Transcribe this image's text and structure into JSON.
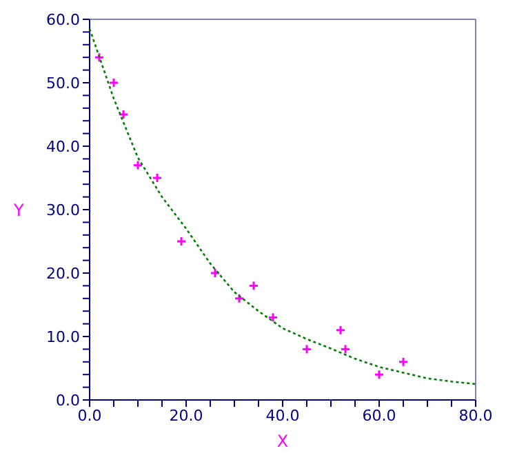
{
  "chart_data": {
    "type": "scatter",
    "xlabel": "X",
    "ylabel": "Y",
    "xlim": [
      0,
      80
    ],
    "ylim": [
      0,
      60
    ],
    "xticks": [
      {
        "value": 0,
        "label": "0.0"
      },
      {
        "value": 5,
        "label": null
      },
      {
        "value": 10,
        "label": null
      },
      {
        "value": 15,
        "label": null
      },
      {
        "value": 20,
        "label": "20.0"
      },
      {
        "value": 25,
        "label": null
      },
      {
        "value": 30,
        "label": null
      },
      {
        "value": 35,
        "label": null
      },
      {
        "value": 40,
        "label": "40.0"
      },
      {
        "value": 45,
        "label": null
      },
      {
        "value": 50,
        "label": null
      },
      {
        "value": 55,
        "label": null
      },
      {
        "value": 60,
        "label": "60.0"
      },
      {
        "value": 65,
        "label": null
      },
      {
        "value": 70,
        "label": null
      },
      {
        "value": 75,
        "label": null
      },
      {
        "value": 80,
        "label": "80.0"
      }
    ],
    "yticks": [
      {
        "value": 0,
        "label": "0.0"
      },
      {
        "value": 2,
        "label": null
      },
      {
        "value": 4,
        "label": null
      },
      {
        "value": 6,
        "label": null
      },
      {
        "value": 8,
        "label": null
      },
      {
        "value": 10,
        "label": "10.0"
      },
      {
        "value": 12,
        "label": null
      },
      {
        "value": 14,
        "label": null
      },
      {
        "value": 16,
        "label": null
      },
      {
        "value": 18,
        "label": null
      },
      {
        "value": 20,
        "label": "20.0"
      },
      {
        "value": 22,
        "label": null
      },
      {
        "value": 24,
        "label": null
      },
      {
        "value": 26,
        "label": null
      },
      {
        "value": 28,
        "label": null
      },
      {
        "value": 30,
        "label": "30.0"
      },
      {
        "value": 32,
        "label": null
      },
      {
        "value": 34,
        "label": null
      },
      {
        "value": 36,
        "label": null
      },
      {
        "value": 38,
        "label": null
      },
      {
        "value": 40,
        "label": "40.0"
      },
      {
        "value": 42,
        "label": null
      },
      {
        "value": 44,
        "label": null
      },
      {
        "value": 46,
        "label": null
      },
      {
        "value": 48,
        "label": null
      },
      {
        "value": 50,
        "label": "50.0"
      },
      {
        "value": 52,
        "label": null
      },
      {
        "value": 54,
        "label": null
      },
      {
        "value": 56,
        "label": null
      },
      {
        "value": 58,
        "label": null
      },
      {
        "value": 60,
        "label": "60.0"
      }
    ],
    "marker": "cross",
    "series": [
      {
        "color": "#ff00ff",
        "x": [
          2,
          5,
          7,
          10,
          14,
          19,
          26,
          31,
          34,
          38,
          45,
          52,
          53,
          60,
          65
        ],
        "values": [
          54,
          50,
          45,
          37,
          35,
          25,
          20,
          16,
          18,
          13,
          8,
          11,
          8,
          4,
          6
        ]
      },
      {
        "type": "line",
        "color": "#008000",
        "line_style": "dotted",
        "marker": "none",
        "x": [
          0,
          5,
          10,
          15,
          20,
          25,
          30,
          35,
          40,
          45,
          50,
          55,
          60,
          65,
          70,
          75,
          80
        ],
        "values": [
          58.5,
          47.5,
          38.2,
          32,
          27,
          21.5,
          17,
          14,
          11.3,
          9.6,
          8.1,
          6.5,
          5.2,
          4.3,
          3.4,
          2.9,
          2.5
        ]
      }
    ]
  }
}
